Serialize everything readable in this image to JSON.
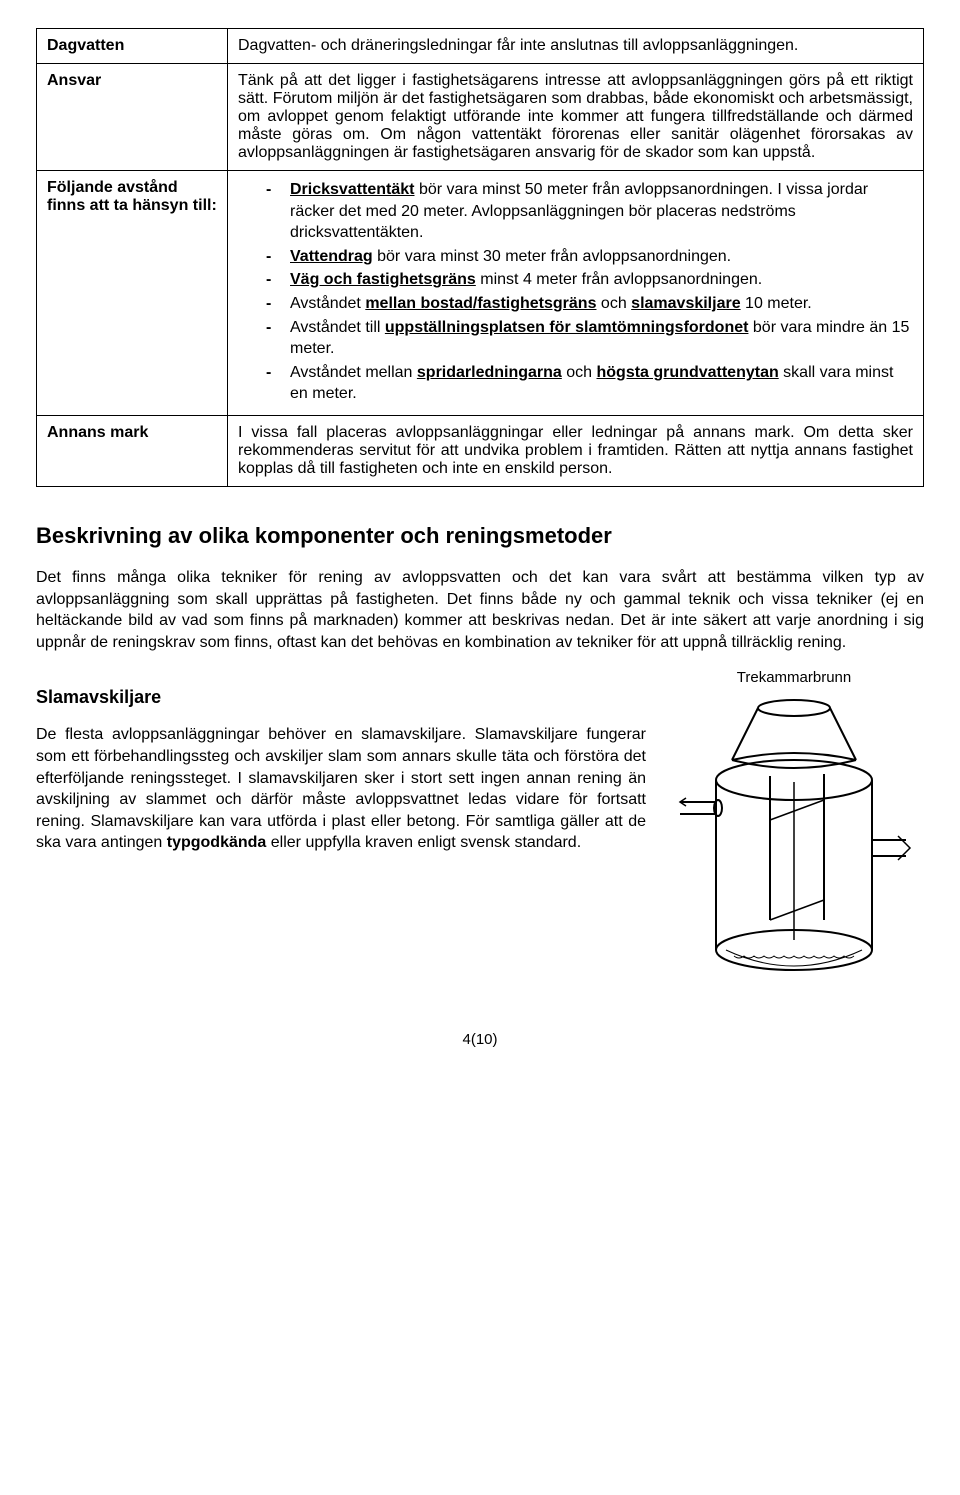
{
  "table": {
    "rows": [
      {
        "label": "Dagvatten",
        "content_html": "Dagvatten- och dräneringsledningar får inte anslutnas till avloppsanläggningen."
      },
      {
        "label": "Ansvar",
        "content_html": "Tänk på att det ligger i fastighetsägarens intresse att avloppsanläggningen görs på ett riktigt sätt. Förutom miljön är det fastighetsägaren som drabbas, både ekonomiskt och arbetsmässigt, om avloppet genom felaktigt utförande inte kommer att fungera tillfredställande och därmed måste göras om. Om någon vattentäkt förorenas eller sanitär olägenhet förorsakas av avloppsanläggningen är fastighetsägaren ansvarig för de skador som kan uppstå."
      },
      {
        "label": "Följande avstånd finns att ta hänsyn till:",
        "is_list": true,
        "items_html": [
          "<span class='ubold'>Dricksvattentäkt</span> bör vara minst 50 meter från avloppsanordningen. I vissa jordar räcker det med 20 meter. Avloppsanläggningen bör placeras nedströms dricksvattentäkten.",
          "<span class='ubold'>Vattendrag</span> bör vara minst 30 meter från avloppsanordningen.",
          "<span class='ubold'>Väg och fastighetsgräns</span> minst 4 meter från avloppsanordningen.",
          "Avståndet <span class='ubold'>mellan bostad/fastighetsgräns</span> och <span class='ubold'>slamavskiljare</span> 10 meter.",
          "Avståndet till <span class='ubold'>uppställningsplatsen för slamtömningsfordonet</span> bör vara mindre än 15 meter.",
          "Avståndet mellan <span class='ubold'>spridarledningarna</span> och <span class='ubold'>högsta grundvattenytan</span> skall vara minst en meter."
        ]
      },
      {
        "label": "Annans mark",
        "content_html": "I vissa fall placeras avloppsanläggningar eller ledningar på annans mark. Om detta sker rekommenderas servitut för att undvika problem i framtiden. Rätten att nyttja annans fastighet kopplas då till fastigheten och inte en enskild person."
      }
    ]
  },
  "section": {
    "heading": "Beskrivning av olika komponenter och reningsmetoder",
    "intro": "Det finns många olika tekniker för rening av avloppsvatten och det kan vara svårt att bestämma vilken typ av avloppsanläggning som skall upprättas på fastigheten. Det finns både ny och gammal teknik och vissa tekniker (ej en heltäckande bild av vad som finns på marknaden) kommer att beskrivas nedan. Det är inte säkert att varje anordning i sig uppnår de reningskrav som finns, oftast kan det behövas en kombination av tekniker för att uppnå tillräcklig rening.",
    "subheading": "Slamavskiljare",
    "subtext_html": "De flesta avloppsanläggningar behöver en slamavskiljare. Slamavskiljare fungerar som ett förbehandlingssteg och avskiljer slam som annars skulle täta och förstöra det efterföljande reningssteget. I slamavskiljaren sker i stort sett ingen annan rening än avskiljning av slammet och därför måste avloppsvattnet ledas vidare för fortsatt rening. Slamavskiljare kan vara utförda i plast eller betong. För samtliga gäller att de ska vara antingen <span class='bold'>typgodkända</span> eller uppfylla kraven enligt svensk standard.",
    "figure_label": "Trekammarbrunn"
  },
  "page_number": "4(10)"
}
